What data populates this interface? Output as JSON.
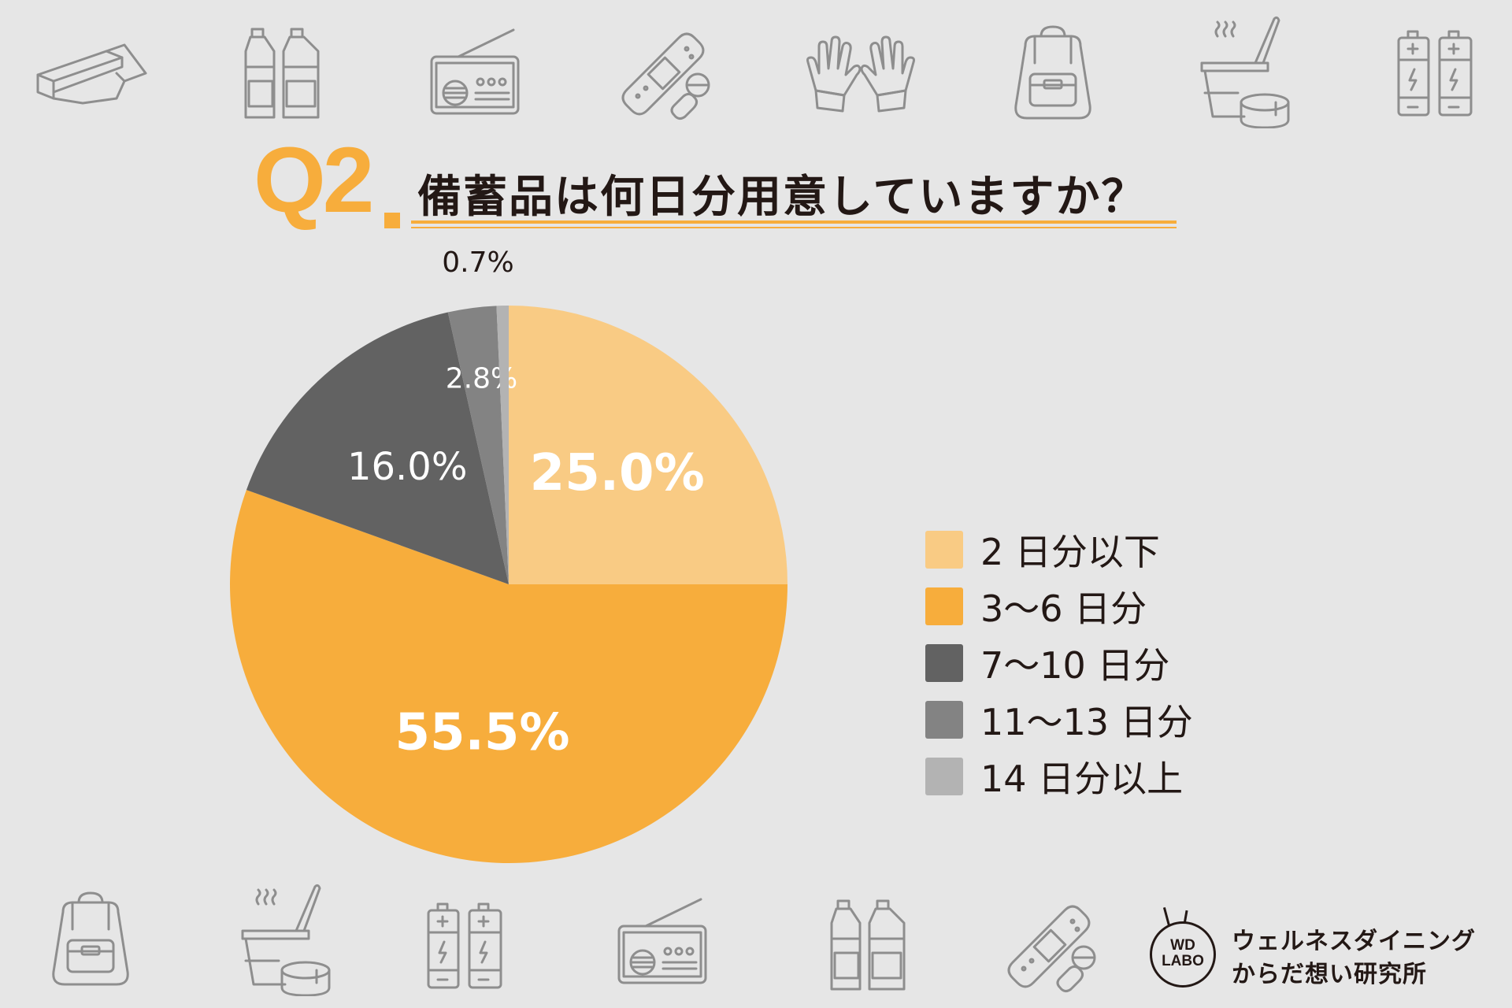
{
  "heading": {
    "q_number": "Q2",
    "title": "備蓄品は何日分用意していますか？"
  },
  "chart_data": {
    "type": "pie",
    "categories": [
      "2 日分以下",
      "3〜6 日分",
      "7〜10 日分",
      "11〜13 日分",
      "14 日分以上"
    ],
    "values": [
      25.0,
      55.5,
      16.0,
      2.8,
      0.7
    ],
    "data_labels": [
      "25.0%",
      "55.5%",
      "16.0%",
      "2.8%",
      "0.7%"
    ],
    "colors": [
      "#f9cb84",
      "#f7ad3c",
      "#626262",
      "#838383",
      "#b3b3b3"
    ],
    "start": "12 o'clock",
    "direction": "clockwise",
    "legend_position": "right"
  },
  "brand": {
    "logo_line1": "WD",
    "logo_line2": "LABO",
    "name_line1": "ウェルネスダイニング",
    "name_line2": "からだ想い研究所"
  },
  "decorative_icons": {
    "top": [
      "plastic-wrap-icon",
      "water-bottles-icon",
      "radio-icon",
      "bandage-pills-icon",
      "gloves-icon",
      "backpack-icon",
      "cup-food-can-icon",
      "batteries-icon"
    ],
    "bottom": [
      "backpack-icon",
      "cup-food-can-icon",
      "batteries-icon",
      "radio-icon",
      "water-bottles-icon",
      "bandage-pills-icon"
    ]
  }
}
